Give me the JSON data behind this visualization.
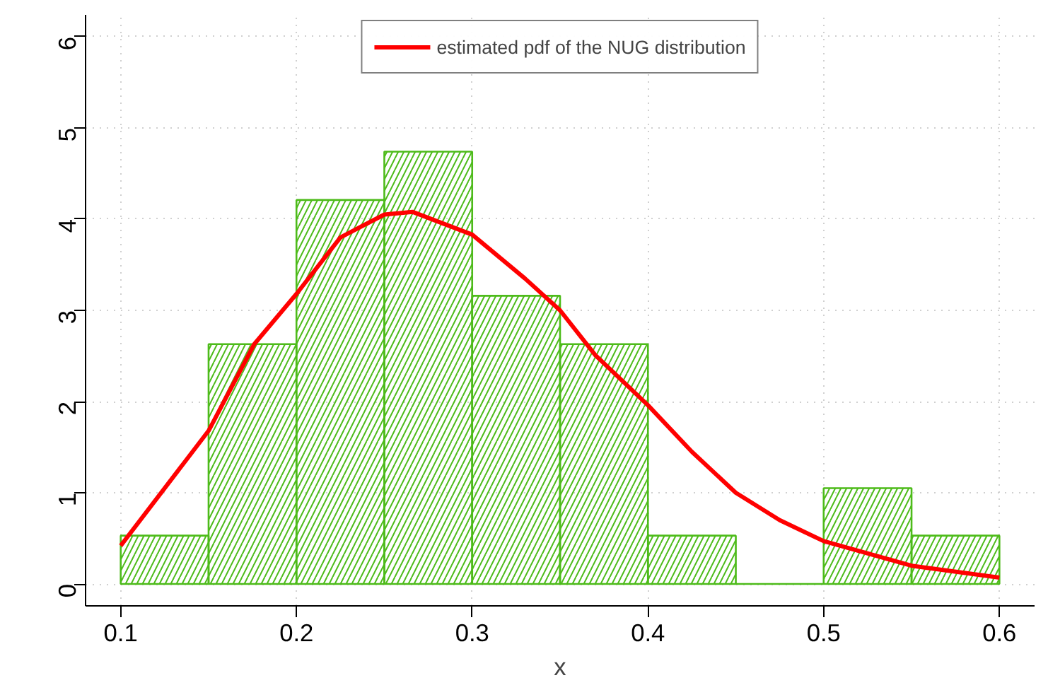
{
  "chart_data": {
    "type": "histogram",
    "xlabel": "x",
    "bins": [
      0.1,
      0.15,
      0.2,
      0.25,
      0.3,
      0.35,
      0.4,
      0.45,
      0.5,
      0.55,
      0.6
    ],
    "values": [
      0.53,
      2.63,
      4.21,
      4.74,
      3.16,
      2.63,
      0.53,
      0,
      1.05,
      0.53
    ],
    "color": "#4dbb1a",
    "series": [
      {
        "type": "line",
        "name": "estimated pdf of the NUG distribution",
        "color": "#ff0000",
        "x": [
          0.1,
          0.15,
          0.176,
          0.2,
          0.225,
          0.25,
          0.266,
          0.3,
          0.33,
          0.35,
          0.37,
          0.4,
          0.425,
          0.45,
          0.475,
          0.5,
          0.55,
          0.6
        ],
        "values": [
          0.42,
          1.68,
          2.63,
          3.18,
          3.8,
          4.05,
          4.08,
          3.83,
          3.35,
          3.0,
          2.51,
          1.96,
          1.45,
          1.0,
          0.7,
          0.47,
          0.2,
          0.07
        ]
      }
    ],
    "xlim": [
      0.08,
      0.62
    ],
    "ylim": [
      -0.24,
      6.24
    ],
    "xticks": [
      0.1,
      0.2,
      0.3,
      0.4,
      0.5,
      0.6
    ],
    "yticks": [
      0,
      1,
      2,
      3,
      4,
      5,
      6
    ],
    "grid": true,
    "legend": "top"
  }
}
